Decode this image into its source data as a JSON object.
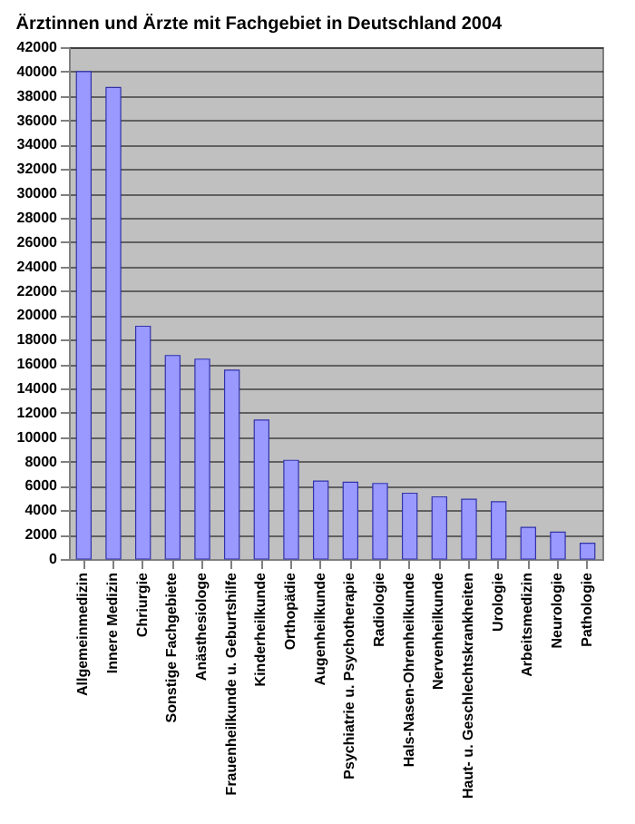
{
  "chart_data": {
    "type": "bar",
    "title": "Ärztinnen und Ärzte mit Fachgebiet in Deutschland 2004",
    "categories": [
      "Allgemeinmedizin",
      "Innere Medizin",
      "Chriurgie",
      "Sonstige Fachgebiete",
      "Anästhesiologe",
      "Frauenheilkunde u. Geburtshilfe",
      "Kinderheilkunde",
      "Orthopädie",
      "Augenheilkunde",
      "Psychiatrie u. Psychotherapie",
      "Radiologie",
      "Hals-Nasen-Ohrenheilkunde",
      "Nervenheilkunde",
      "Haut- u. Geschlechtskrankheiten",
      "Urologie",
      "Arbeitsmedizin",
      "Neurologie",
      "Pathologie"
    ],
    "values": [
      40000,
      38700,
      19100,
      16700,
      16400,
      15500,
      11400,
      8100,
      6400,
      6300,
      6200,
      5400,
      5100,
      4900,
      4700,
      2600,
      2200,
      1300
    ],
    "color": "#9999ff",
    "ylim": [
      0,
      42000
    ],
    "yticks": [
      0,
      2000,
      4000,
      6000,
      8000,
      10000,
      12000,
      14000,
      16000,
      18000,
      20000,
      22000,
      24000,
      26000,
      28000,
      30000,
      32000,
      34000,
      36000,
      38000,
      40000,
      42000
    ],
    "grid": "y"
  }
}
